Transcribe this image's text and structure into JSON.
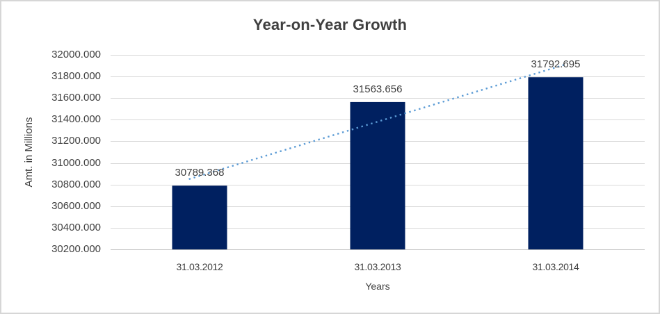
{
  "chart_data": {
    "type": "bar",
    "title": "Year-on-Year Growth",
    "xlabel": "Years",
    "ylabel": "Amt. in Millions",
    "categories": [
      "31.03.2012",
      "31.03.2013",
      "31.03.2014"
    ],
    "values": [
      30789.368,
      31563.656,
      31792.695
    ],
    "data_labels": [
      "30789.368",
      "31563.656",
      "31792.695"
    ],
    "ylim": [
      30200,
      32000
    ],
    "ytick_step": 200,
    "ytick_labels": [
      "30200.000",
      "30400.000",
      "30600.000",
      "30800.000",
      "31000.000",
      "31200.000",
      "31400.000",
      "31600.000",
      "31800.000",
      "32000.000"
    ],
    "grid": true,
    "legend": false,
    "colors": {
      "bar": "#002060",
      "trendline": "#5B9BD5",
      "gridline": "#D9D9D9",
      "axis_line": "#BFBFBF",
      "text": "#404040"
    },
    "trendline": {
      "kind": "linear",
      "style": "dotted"
    }
  }
}
